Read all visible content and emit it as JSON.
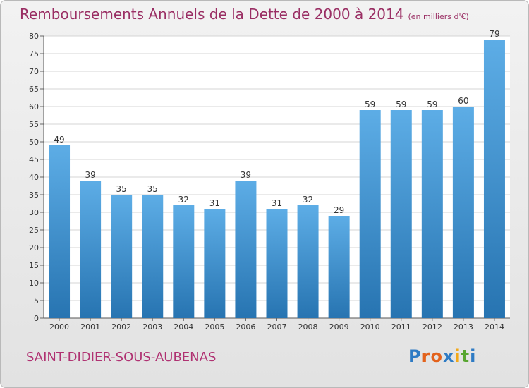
{
  "title": "Remboursements Annuels de la Dette de 2000 à 2014",
  "units": "(en milliers d'€)",
  "commune": "SAINT-DIDIER-SOUS-AUBENAS",
  "logo": {
    "text": "Proxiti",
    "letters": [
      {
        "char": "P",
        "color": "#2e7bc4"
      },
      {
        "char": "r",
        "color": "#e3621c"
      },
      {
        "char": "o",
        "color": "#e3621c"
      },
      {
        "char": "x",
        "color": "#2e7bc4"
      },
      {
        "char": "i",
        "color": "#f2a818"
      },
      {
        "char": "t",
        "color": "#58a631"
      },
      {
        "char": "i",
        "color": "#2e7bc4"
      }
    ]
  },
  "colors": {
    "bar_light": "#5dade6",
    "bar_dark": "#2774b1",
    "title": "#9a2f64",
    "commune": "#b03272",
    "grid": "#d4d4d4"
  },
  "chart_data": {
    "type": "bar",
    "categories": [
      "2000",
      "2001",
      "2002",
      "2003",
      "2004",
      "2005",
      "2006",
      "2007",
      "2008",
      "2009",
      "2010",
      "2011",
      "2012",
      "2013",
      "2014"
    ],
    "values": [
      49,
      39,
      35,
      35,
      32,
      31,
      39,
      31,
      32,
      29,
      59,
      59,
      59,
      60,
      79
    ],
    "yticks": [
      0,
      5,
      10,
      15,
      20,
      25,
      30,
      35,
      40,
      45,
      50,
      55,
      60,
      65,
      70,
      75,
      80
    ],
    "ylim": [
      0,
      80
    ],
    "grid": true
  }
}
